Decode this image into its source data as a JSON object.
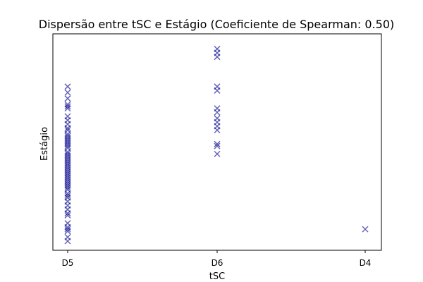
{
  "chart_data": {
    "type": "scatter",
    "title": "Dispersão entre tSC e Estágio (Coeficiente de Spearman: 0.50)",
    "xlabel": "tSC",
    "ylabel": "Estágio",
    "x_categories": [
      "D5",
      "D6",
      "D4"
    ],
    "ylim": [
      0,
      100
    ],
    "grid": false,
    "legend": "none",
    "marker": "x",
    "marker_color": "#00008b",
    "marker_alpha": 0.6,
    "points": [
      {
        "x": "D5",
        "y": 78
      },
      {
        "x": "D5",
        "y": 75
      },
      {
        "x": "D5",
        "y": 72
      },
      {
        "x": "D5",
        "y": 69
      },
      {
        "x": "D5",
        "y": 68
      },
      {
        "x": "D5",
        "y": 67
      },
      {
        "x": "D5",
        "y": 63
      },
      {
        "x": "D5",
        "y": 61
      },
      {
        "x": "D5",
        "y": 59
      },
      {
        "x": "D5",
        "y": 57
      },
      {
        "x": "D5",
        "y": 56
      },
      {
        "x": "D5",
        "y": 54
      },
      {
        "x": "D5",
        "y": 53
      },
      {
        "x": "D5",
        "y": 52
      },
      {
        "x": "D5",
        "y": 51
      },
      {
        "x": "D5",
        "y": 50
      },
      {
        "x": "D5",
        "y": 49
      },
      {
        "x": "D5",
        "y": 48
      },
      {
        "x": "D5",
        "y": 47
      },
      {
        "x": "D5",
        "y": 45
      },
      {
        "x": "D5",
        "y": 44
      },
      {
        "x": "D5",
        "y": 43
      },
      {
        "x": "D5",
        "y": 42
      },
      {
        "x": "D5",
        "y": 41
      },
      {
        "x": "D5",
        "y": 40
      },
      {
        "x": "D5",
        "y": 39
      },
      {
        "x": "D5",
        "y": 38
      },
      {
        "x": "D5",
        "y": 37
      },
      {
        "x": "D5",
        "y": 36
      },
      {
        "x": "D5",
        "y": 35
      },
      {
        "x": "D5",
        "y": 34
      },
      {
        "x": "D5",
        "y": 33
      },
      {
        "x": "D5",
        "y": 32
      },
      {
        "x": "D5",
        "y": 31
      },
      {
        "x": "D5",
        "y": 30
      },
      {
        "x": "D5",
        "y": 29
      },
      {
        "x": "D5",
        "y": 28
      },
      {
        "x": "D5",
        "y": 27
      },
      {
        "x": "D5",
        "y": 26
      },
      {
        "x": "D5",
        "y": 24
      },
      {
        "x": "D5",
        "y": 23
      },
      {
        "x": "D5",
        "y": 22
      },
      {
        "x": "D5",
        "y": 20
      },
      {
        "x": "D5",
        "y": 18
      },
      {
        "x": "D5",
        "y": 16
      },
      {
        "x": "D5",
        "y": 14
      },
      {
        "x": "D5",
        "y": 13
      },
      {
        "x": "D5",
        "y": 9
      },
      {
        "x": "D5",
        "y": 7
      },
      {
        "x": "D5",
        "y": 6
      },
      {
        "x": "D5",
        "y": 5
      },
      {
        "x": "D5",
        "y": 2
      },
      {
        "x": "D5",
        "y": 0
      },
      {
        "x": "D6",
        "y": 97
      },
      {
        "x": "D6",
        "y": 95
      },
      {
        "x": "D6",
        "y": 93
      },
      {
        "x": "D6",
        "y": 78
      },
      {
        "x": "D6",
        "y": 76
      },
      {
        "x": "D6",
        "y": 67
      },
      {
        "x": "D6",
        "y": 65
      },
      {
        "x": "D6",
        "y": 62
      },
      {
        "x": "D6",
        "y": 60
      },
      {
        "x": "D6",
        "y": 58
      },
      {
        "x": "D6",
        "y": 56
      },
      {
        "x": "D6",
        "y": 49
      },
      {
        "x": "D6",
        "y": 48
      },
      {
        "x": "D6",
        "y": 44
      },
      {
        "x": "D4",
        "y": 6
      }
    ]
  }
}
